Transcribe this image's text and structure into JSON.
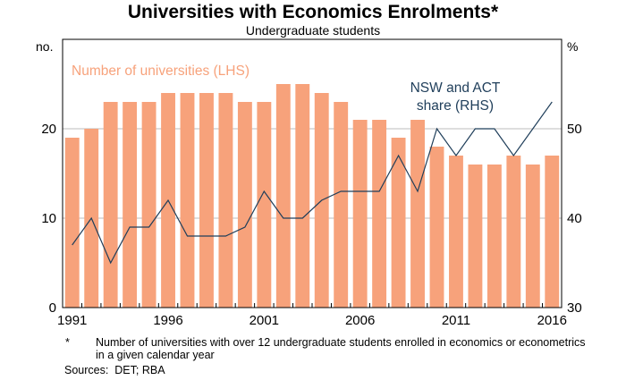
{
  "title": "Universities with Economics Enrolments*",
  "subtitle": "Undergraduate students",
  "left_unit": "no.",
  "right_unit": "%",
  "footnote_marker": "*",
  "footnote": "Number of universities with over 12 undergraduate students enrolled in economics or econometrics in a given calendar year",
  "sources": "Sources:  DET; RBA",
  "colors": {
    "bar": "#f7a27b",
    "line": "#1f3e5a",
    "series_label": "#f7a27b"
  },
  "chart_data": {
    "type": "bar",
    "years": [
      1991,
      1992,
      1993,
      1994,
      1995,
      1996,
      1997,
      1998,
      1999,
      2000,
      2001,
      2002,
      2003,
      2004,
      2005,
      2006,
      2007,
      2008,
      2009,
      2010,
      2011,
      2012,
      2013,
      2014,
      2015,
      2016
    ],
    "x_tick_labels": [
      "1991",
      "1996",
      "2001",
      "2006",
      "2011",
      "2016"
    ],
    "left_axis": {
      "label": "no.",
      "ylim": [
        0,
        30
      ],
      "ticks": [
        "0",
        "10",
        "20"
      ],
      "tick_values": [
        0,
        10,
        20
      ]
    },
    "right_axis": {
      "label": "%",
      "ylim": [
        30,
        60
      ],
      "ticks": [
        "30",
        "40",
        "50"
      ],
      "tick_values": [
        30,
        40,
        50
      ]
    },
    "grid": true,
    "series": [
      {
        "name": "Number of universities (LHS)",
        "type": "bar",
        "axis": "left",
        "values": [
          19,
          20,
          23,
          23,
          23,
          24,
          24,
          24,
          24,
          23,
          23,
          25,
          25,
          24,
          23,
          21,
          21,
          19,
          21,
          18,
          17,
          16,
          16,
          17,
          16,
          17
        ]
      },
      {
        "name": "NSW and ACT share (RHS)",
        "type": "line",
        "axis": "right",
        "values": [
          37,
          40,
          35,
          39,
          39,
          42,
          38,
          38,
          38,
          39,
          43,
          40,
          40,
          42,
          43,
          43,
          43,
          47,
          43,
          50,
          47,
          50,
          50,
          47,
          50,
          53
        ]
      }
    ],
    "line_label_lines": [
      "NSW and ACT",
      "share (RHS)"
    ]
  }
}
